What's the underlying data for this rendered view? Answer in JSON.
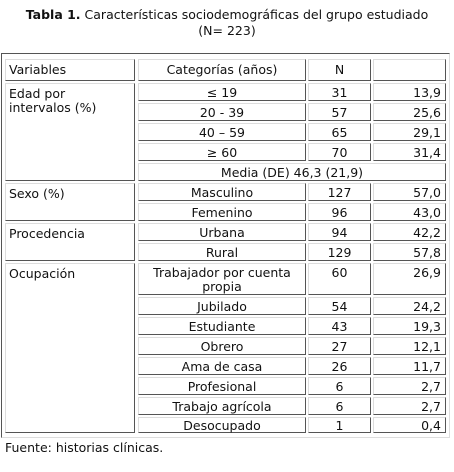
{
  "caption": {
    "label": "Tabla 1.",
    "title": "Características sociodemográficas del grupo estudiado",
    "subtitle": "(N= 223)"
  },
  "table": {
    "headers": [
      "Variables",
      "Categorías (años)",
      "N",
      ""
    ],
    "groups": [
      {
        "variable": "Edad por intervalos (%)",
        "rows": [
          {
            "category": "≤ 19",
            "n": "31",
            "pct": "13,9"
          },
          {
            "category": "20 - 39",
            "n": "57",
            "pct": "25,6"
          },
          {
            "category": "40 – 59",
            "n": "65",
            "pct": "29,1"
          },
          {
            "category": "≥ 60",
            "n": "70",
            "pct": "31,4"
          }
        ],
        "summary": "Media (DE) 46,3 (21,9)"
      },
      {
        "variable": "Sexo (%)",
        "rows": [
          {
            "category": "Masculino",
            "n": "127",
            "pct": "57,0"
          },
          {
            "category": "Femenino",
            "n": "96",
            "pct": "43,0"
          }
        ]
      },
      {
        "variable": "Procedencia",
        "rows": [
          {
            "category": "Urbana",
            "n": "94",
            "pct": "42,2"
          },
          {
            "category": "Rural",
            "n": "129",
            "pct": "57,8"
          }
        ]
      },
      {
        "variable": "Ocupación",
        "rows": [
          {
            "category": "Trabajador por cuenta propia",
            "n": "60",
            "pct": "26,9"
          },
          {
            "category": "Jubilado",
            "n": "54",
            "pct": "24,2"
          },
          {
            "category": "Estudiante",
            "n": "43",
            "pct": "19,3"
          },
          {
            "category": "Obrero",
            "n": "27",
            "pct": "12,1"
          },
          {
            "category": "Ama de casa",
            "n": "26",
            "pct": "11,7"
          },
          {
            "category": "Profesional",
            "n": "6",
            "pct": "2,7"
          },
          {
            "category": "Trabajo agrícola",
            "n": "6",
            "pct": "2,7"
          },
          {
            "category": "Desocupado",
            "n": "1",
            "pct": "0,4"
          }
        ]
      }
    ]
  },
  "footer": "Fuente: historias clínicas."
}
